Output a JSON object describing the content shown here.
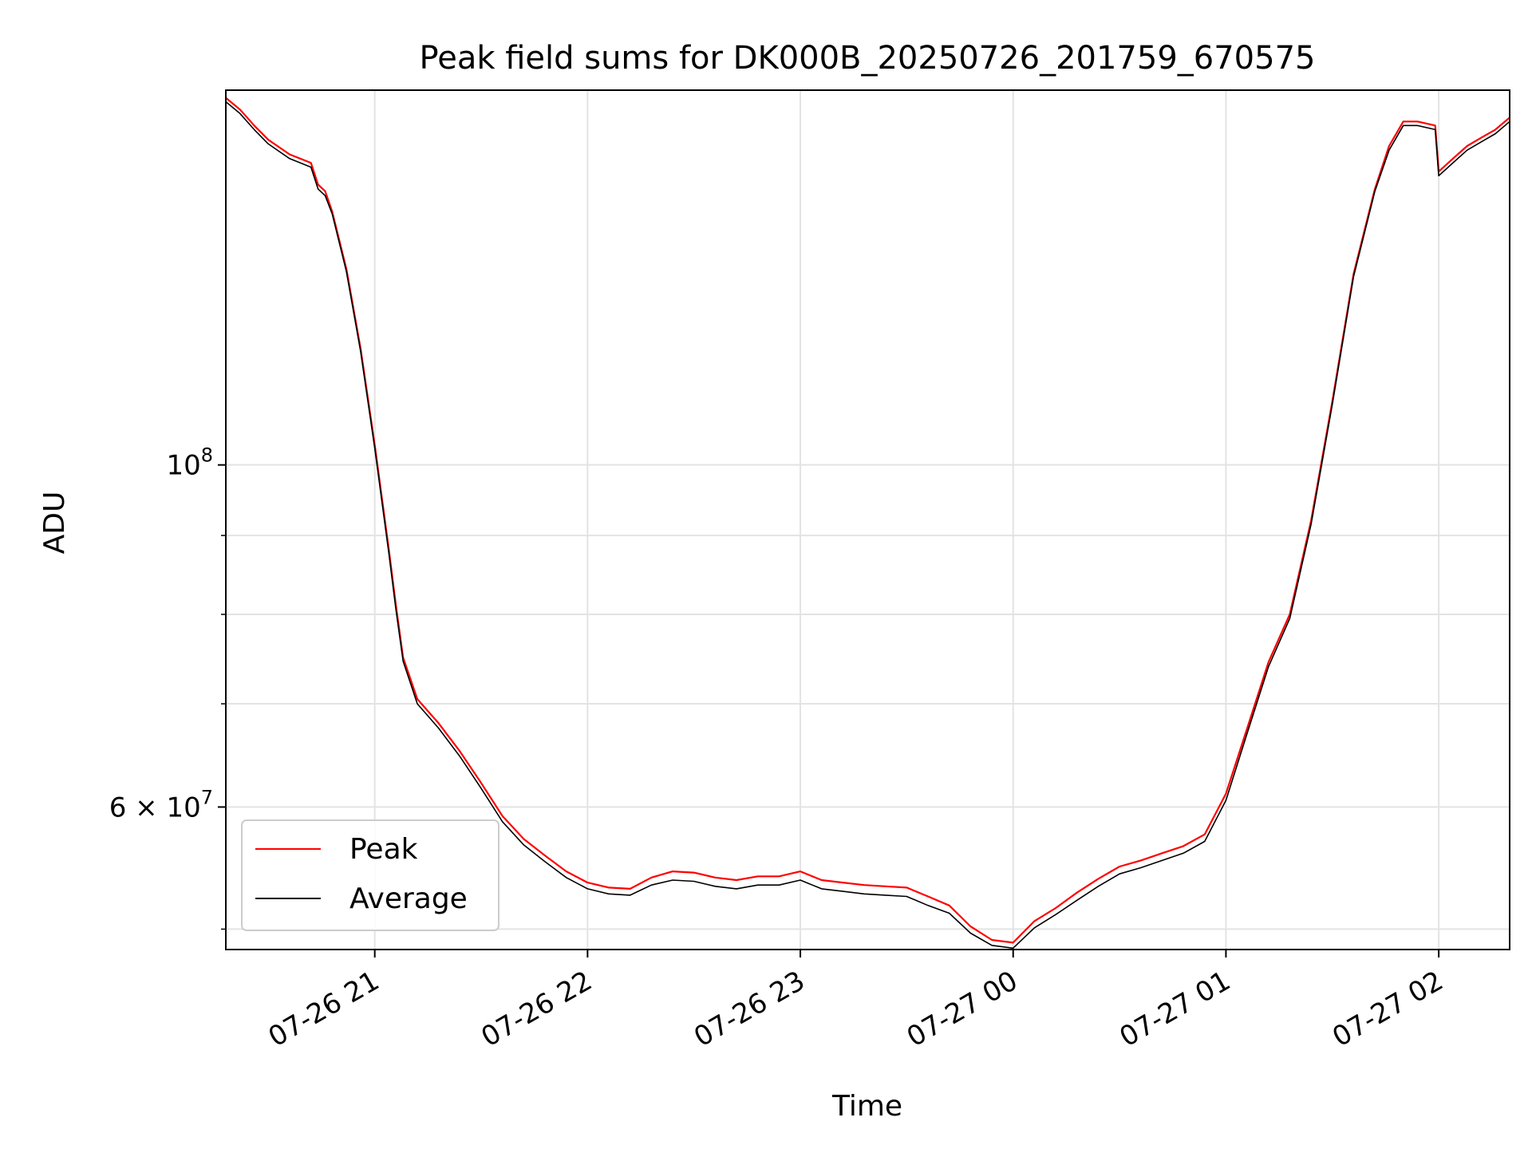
{
  "chart_data": {
    "type": "line",
    "title": "Peak field sums for DK000B_20250726_201759_670575",
    "xlabel": "Time",
    "ylabel": "ADU",
    "y_scale": "log",
    "grid": true,
    "legend_position": "lower-left",
    "xlim": [
      "2025-07-26 20:18",
      "2025-07-27 02:20"
    ],
    "ylim": [
      48500000,
      175000000
    ],
    "x_ticks": [
      {
        "at": "2025-07-26 21:00",
        "label": "07-26 21"
      },
      {
        "at": "2025-07-26 22:00",
        "label": "07-26 22"
      },
      {
        "at": "2025-07-26 23:00",
        "label": "07-26 23"
      },
      {
        "at": "2025-07-27 00:00",
        "label": "07-27 00"
      },
      {
        "at": "2025-07-27 01:00",
        "label": "07-27 01"
      },
      {
        "at": "2025-07-27 02:00",
        "label": "07-27 02"
      }
    ],
    "y_major_ticks": [
      {
        "value": 100000000,
        "base": "10",
        "exp": "8"
      },
      {
        "value": 60000000,
        "base": "6 × 10",
        "exp": "7"
      }
    ],
    "y_minor_ticks": [
      50000000,
      70000000,
      80000000,
      90000000
    ],
    "series": [
      {
        "name": "Peak",
        "color": "#ff0000",
        "x": [
          "2025-07-26 20:18",
          "2025-07-26 20:22",
          "2025-07-26 20:26",
          "2025-07-26 20:30",
          "2025-07-26 20:36",
          "2025-07-26 20:42",
          "2025-07-26 20:44",
          "2025-07-26 20:46",
          "2025-07-26 20:48",
          "2025-07-26 20:52",
          "2025-07-26 20:56",
          "2025-07-26 21:00",
          "2025-07-26 21:04",
          "2025-07-26 21:06",
          "2025-07-26 21:08",
          "2025-07-26 21:12",
          "2025-07-26 21:18",
          "2025-07-26 21:24",
          "2025-07-26 21:30",
          "2025-07-26 21:36",
          "2025-07-26 21:42",
          "2025-07-26 21:48",
          "2025-07-26 21:54",
          "2025-07-26 22:00",
          "2025-07-26 22:06",
          "2025-07-26 22:12",
          "2025-07-26 22:18",
          "2025-07-26 22:24",
          "2025-07-26 22:30",
          "2025-07-26 22:36",
          "2025-07-26 22:42",
          "2025-07-26 22:48",
          "2025-07-26 22:54",
          "2025-07-26 23:00",
          "2025-07-26 23:06",
          "2025-07-26 23:12",
          "2025-07-26 23:18",
          "2025-07-26 23:24",
          "2025-07-26 23:30",
          "2025-07-26 23:36",
          "2025-07-26 23:42",
          "2025-07-26 23:48",
          "2025-07-26 23:54",
          "2025-07-27 00:00",
          "2025-07-27 00:06",
          "2025-07-27 00:12",
          "2025-07-27 00:18",
          "2025-07-27 00:24",
          "2025-07-27 00:30",
          "2025-07-27 00:36",
          "2025-07-27 00:42",
          "2025-07-27 00:48",
          "2025-07-27 00:54",
          "2025-07-27 01:00",
          "2025-07-27 01:06",
          "2025-07-27 01:12",
          "2025-07-27 01:18",
          "2025-07-27 01:24",
          "2025-07-27 01:30",
          "2025-07-27 01:36",
          "2025-07-27 01:42",
          "2025-07-27 01:46",
          "2025-07-27 01:50",
          "2025-07-27 01:54",
          "2025-07-27 01:59",
          "2025-07-27 02:00",
          "2025-07-27 02:04",
          "2025-07-27 02:08",
          "2025-07-27 02:12",
          "2025-07-27 02:16",
          "2025-07-27 02:20"
        ],
        "y": [
          173000000,
          170000000,
          166000000,
          162500000,
          159000000,
          157000000,
          152000000,
          150500000,
          146000000,
          134000000,
          119000000,
          103000000,
          88000000,
          81000000,
          75000000,
          70500000,
          68000000,
          65200000,
          62200000,
          59200000,
          57200000,
          55800000,
          54500000,
          53600000,
          53200000,
          53100000,
          54000000,
          54500000,
          54400000,
          54000000,
          53800000,
          54100000,
          54100000,
          54500000,
          53800000,
          53600000,
          53400000,
          53300000,
          53200000,
          52500000,
          51800000,
          50200000,
          49200000,
          49000000,
          50600000,
          51600000,
          52800000,
          53900000,
          54900000,
          55400000,
          56000000,
          56600000,
          57600000,
          61200000,
          67500000,
          74500000,
          80000000,
          92000000,
          110000000,
          133000000,
          151000000,
          161000000,
          167000000,
          167000000,
          166000000,
          155000000,
          158000000,
          161000000,
          163000000,
          165000000,
          168000000
        ]
      },
      {
        "name": "Average",
        "color": "#000000",
        "x": [
          "2025-07-26 20:18",
          "2025-07-26 20:22",
          "2025-07-26 20:26",
          "2025-07-26 20:30",
          "2025-07-26 20:36",
          "2025-07-26 20:42",
          "2025-07-26 20:44",
          "2025-07-26 20:46",
          "2025-07-26 20:48",
          "2025-07-26 20:52",
          "2025-07-26 20:56",
          "2025-07-26 21:00",
          "2025-07-26 21:04",
          "2025-07-26 21:06",
          "2025-07-26 21:08",
          "2025-07-26 21:12",
          "2025-07-26 21:18",
          "2025-07-26 21:24",
          "2025-07-26 21:30",
          "2025-07-26 21:36",
          "2025-07-26 21:42",
          "2025-07-26 21:48",
          "2025-07-26 21:54",
          "2025-07-26 22:00",
          "2025-07-26 22:06",
          "2025-07-26 22:12",
          "2025-07-26 22:18",
          "2025-07-26 22:24",
          "2025-07-26 22:30",
          "2025-07-26 22:36",
          "2025-07-26 22:42",
          "2025-07-26 22:48",
          "2025-07-26 22:54",
          "2025-07-26 23:00",
          "2025-07-26 23:06",
          "2025-07-26 23:12",
          "2025-07-26 23:18",
          "2025-07-26 23:24",
          "2025-07-26 23:30",
          "2025-07-26 23:36",
          "2025-07-26 23:42",
          "2025-07-26 23:48",
          "2025-07-26 23:54",
          "2025-07-27 00:00",
          "2025-07-27 00:06",
          "2025-07-27 00:12",
          "2025-07-27 00:18",
          "2025-07-27 00:24",
          "2025-07-27 00:30",
          "2025-07-27 00:36",
          "2025-07-27 00:42",
          "2025-07-27 00:48",
          "2025-07-27 00:54",
          "2025-07-27 01:00",
          "2025-07-27 01:06",
          "2025-07-27 01:12",
          "2025-07-27 01:18",
          "2025-07-27 01:24",
          "2025-07-27 01:30",
          "2025-07-27 01:36",
          "2025-07-27 01:42",
          "2025-07-27 01:46",
          "2025-07-27 01:50",
          "2025-07-27 01:54",
          "2025-07-27 01:59",
          "2025-07-27 02:00",
          "2025-07-27 02:04",
          "2025-07-27 02:08",
          "2025-07-27 02:12",
          "2025-07-27 02:16",
          "2025-07-27 02:20"
        ],
        "y": [
          172000000,
          169000000,
          165000000,
          161500000,
          158000000,
          156000000,
          151000000,
          149500000,
          145500000,
          133500000,
          118500000,
          102500000,
          87500000,
          80500000,
          74600000,
          70000000,
          67500000,
          64700000,
          61700000,
          58700000,
          56700000,
          55300000,
          54000000,
          53100000,
          52700000,
          52600000,
          53400000,
          53800000,
          53700000,
          53300000,
          53100000,
          53400000,
          53400000,
          53800000,
          53100000,
          52900000,
          52700000,
          52600000,
          52500000,
          51800000,
          51200000,
          49700000,
          48800000,
          48600000,
          50100000,
          51100000,
          52200000,
          53300000,
          54300000,
          54800000,
          55400000,
          56000000,
          57000000,
          60600000,
          67000000,
          74000000,
          79500000,
          91500000,
          109500000,
          132500000,
          150500000,
          160000000,
          166000000,
          166000000,
          165000000,
          154000000,
          157000000,
          160000000,
          162000000,
          164000000,
          167000000
        ]
      }
    ]
  }
}
